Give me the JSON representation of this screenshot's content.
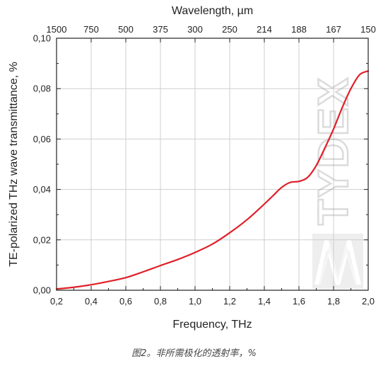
{
  "chart_data": {
    "type": "line",
    "xlabel": "Frequency, THz",
    "ylabel": "TE-polarized THz wave transmittance, %",
    "x2label": "Wavelength, µm",
    "xlim": [
      0.2,
      2.0
    ],
    "ylim": [
      0.0,
      0.1
    ],
    "x_ticks": [
      "0,2",
      "0,4",
      "0,6",
      "0,8",
      "1,0",
      "1,2",
      "1,4",
      "1,6",
      "1,8",
      "2,0"
    ],
    "y_ticks": [
      "0,00",
      "0,02",
      "0,04",
      "0,06",
      "0,08",
      "0,10"
    ],
    "x2_ticks": [
      "1500",
      "750",
      "500",
      "375",
      "300",
      "250",
      "214",
      "188",
      "167",
      "150"
    ],
    "grid": true,
    "series": [
      {
        "color": "#e0202a",
        "x": [
          0.2,
          0.3,
          0.4,
          0.5,
          0.6,
          0.7,
          0.8,
          0.9,
          1.0,
          1.1,
          1.2,
          1.3,
          1.4,
          1.45,
          1.5,
          1.55,
          1.6,
          1.65,
          1.7,
          1.75,
          1.8,
          1.85,
          1.9,
          1.95,
          2.0
        ],
        "y": [
          0.0005,
          0.0012,
          0.0022,
          0.0035,
          0.005,
          0.0073,
          0.0098,
          0.0122,
          0.015,
          0.0183,
          0.0228,
          0.028,
          0.0342,
          0.0375,
          0.0408,
          0.0428,
          0.0432,
          0.0448,
          0.0495,
          0.0565,
          0.064,
          0.0725,
          0.08,
          0.0855,
          0.087
        ]
      }
    ]
  },
  "watermark": {
    "text": "TYDEX"
  },
  "caption": "图2。非所需极化的透射率，%"
}
